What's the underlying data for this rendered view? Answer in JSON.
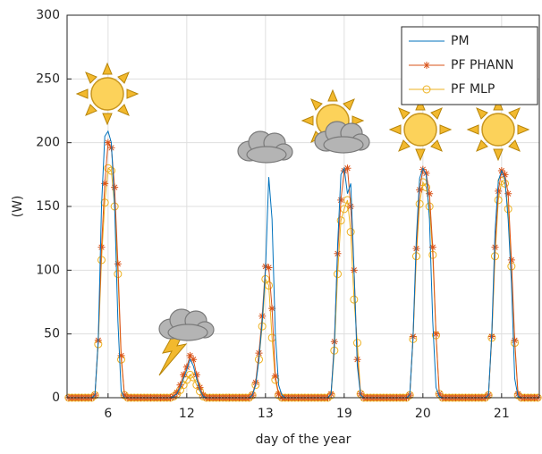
{
  "chart_data": {
    "type": "line",
    "x_label": "day of the year",
    "y_label": "(W)",
    "categories": [
      null,
      null,
      null,
      null,
      null,
      null,
      null,
      null,
      null,
      null,
      null,
      null,
      "6",
      null,
      null,
      null,
      null,
      null,
      null,
      null,
      null,
      null,
      null,
      null,
      null,
      null,
      null,
      null,
      null,
      null,
      null,
      null,
      null,
      null,
      null,
      null,
      "12",
      null,
      null,
      null,
      null,
      null,
      null,
      null,
      null,
      null,
      null,
      null,
      null,
      null,
      null,
      null,
      null,
      null,
      null,
      null,
      null,
      null,
      null,
      null,
      "13",
      null,
      null,
      null,
      null,
      null,
      null,
      null,
      null,
      null,
      null,
      null,
      null,
      null,
      null,
      null,
      null,
      null,
      null,
      null,
      null,
      null,
      null,
      null,
      "19",
      null,
      null,
      null,
      null,
      null,
      null,
      null,
      null,
      null,
      null,
      null,
      null,
      null,
      null,
      null,
      null,
      null,
      null,
      null,
      null,
      null,
      null,
      null,
      "20",
      null,
      null,
      null,
      null,
      null,
      null,
      null,
      null,
      null,
      null,
      null,
      null,
      null,
      null,
      null,
      null,
      null,
      null,
      null,
      null,
      null,
      null,
      null,
      "21",
      null,
      null,
      null,
      null,
      null,
      null,
      null,
      null,
      null,
      null,
      null
    ],
    "series": [
      {
        "name": "PM",
        "color": "#0072bd",
        "marker": "none",
        "values": [
          0,
          0,
          0,
          0,
          0,
          0,
          0,
          0,
          2,
          45,
          150,
          205,
          209,
          200,
          150,
          60,
          5,
          0,
          0,
          0,
          0,
          0,
          0,
          0,
          0,
          0,
          0,
          0,
          0,
          0,
          0,
          0,
          1,
          3,
          8,
          15,
          22,
          30,
          25,
          15,
          6,
          1,
          0,
          0,
          0,
          0,
          0,
          0,
          0,
          0,
          0,
          0,
          0,
          0,
          0,
          0,
          2,
          10,
          30,
          60,
          100,
          173,
          140,
          50,
          10,
          2,
          0,
          0,
          0,
          0,
          0,
          0,
          0,
          0,
          0,
          0,
          0,
          0,
          0,
          0,
          3,
          40,
          120,
          175,
          180,
          160,
          168,
          100,
          25,
          2,
          0,
          0,
          0,
          0,
          0,
          0,
          0,
          0,
          0,
          0,
          0,
          0,
          0,
          0,
          2,
          48,
          125,
          172,
          180,
          175,
          140,
          60,
          8,
          1,
          0,
          0,
          0,
          0,
          0,
          0,
          0,
          0,
          0,
          0,
          0,
          0,
          0,
          0,
          2,
          50,
          130,
          170,
          178,
          172,
          140,
          90,
          15,
          1,
          0,
          0,
          0,
          0,
          0,
          0
        ]
      },
      {
        "name": "PF PHANN",
        "color": "#d95319",
        "marker": "asterisk",
        "values": [
          0,
          0,
          0,
          0,
          0,
          0,
          0,
          0,
          2,
          45,
          118,
          168,
          200,
          196,
          165,
          105,
          33,
          2,
          0,
          0,
          0,
          0,
          0,
          0,
          0,
          0,
          0,
          0,
          0,
          0,
          0,
          0,
          1,
          4,
          10,
          18,
          24,
          33,
          30,
          18,
          8,
          2,
          0,
          0,
          0,
          0,
          0,
          0,
          0,
          0,
          0,
          0,
          0,
          0,
          0,
          0,
          2,
          12,
          35,
          64,
          103,
          102,
          70,
          17,
          3,
          0,
          0,
          0,
          0,
          0,
          0,
          0,
          0,
          0,
          0,
          0,
          0,
          0,
          0,
          0,
          3,
          44,
          113,
          155,
          178,
          180,
          150,
          100,
          30,
          3,
          0,
          0,
          0,
          0,
          0,
          0,
          0,
          0,
          0,
          0,
          0,
          0,
          0,
          0,
          2,
          48,
          117,
          163,
          179,
          176,
          160,
          118,
          50,
          3,
          0,
          0,
          0,
          0,
          0,
          0,
          0,
          0,
          0,
          0,
          0,
          0,
          0,
          0,
          2,
          48,
          118,
          162,
          178,
          175,
          160,
          108,
          45,
          3,
          0,
          0,
          0,
          0,
          0,
          0
        ]
      },
      {
        "name": "PF MLP",
        "color": "#edb120",
        "marker": "circle",
        "values": [
          0,
          0,
          0,
          0,
          0,
          0,
          0,
          0,
          2,
          42,
          108,
          153,
          180,
          178,
          150,
          97,
          30,
          2,
          0,
          0,
          0,
          0,
          0,
          0,
          0,
          0,
          0,
          0,
          0,
          0,
          0,
          0,
          1,
          3,
          6,
          10,
          14,
          18,
          16,
          10,
          5,
          1,
          0,
          0,
          0,
          0,
          0,
          0,
          0,
          0,
          0,
          0,
          0,
          0,
          0,
          0,
          2,
          10,
          30,
          56,
          93,
          88,
          47,
          14,
          2,
          0,
          0,
          0,
          0,
          0,
          0,
          0,
          0,
          0,
          0,
          0,
          0,
          0,
          0,
          0,
          2,
          37,
          97,
          139,
          148,
          155,
          130,
          77,
          43,
          3,
          0,
          0,
          0,
          0,
          0,
          0,
          0,
          0,
          0,
          0,
          0,
          0,
          0,
          0,
          2,
          46,
          111,
          152,
          169,
          165,
          150,
          112,
          49,
          3,
          0,
          0,
          0,
          0,
          0,
          0,
          0,
          0,
          0,
          0,
          0,
          0,
          0,
          0,
          2,
          47,
          111,
          155,
          170,
          168,
          148,
          103,
          43,
          2,
          0,
          0,
          0,
          0,
          0,
          0
        ]
      }
    ],
    "ylim": [
      0,
      300
    ],
    "yticks": [
      0,
      50,
      100,
      150,
      200,
      250,
      300
    ],
    "grid": true,
    "legend": "top-right"
  }
}
